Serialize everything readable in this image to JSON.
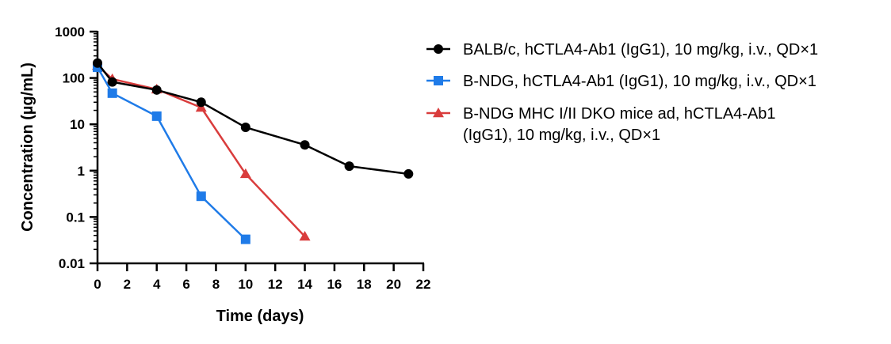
{
  "chart_data": {
    "type": "line",
    "xlabel": "Time (days)",
    "ylabel": "Concentration (µg/mL)",
    "xlim": [
      0,
      22
    ],
    "ylim": [
      0.01,
      1000
    ],
    "yscale": "log",
    "x_ticks": [
      "0",
      "2",
      "4",
      "6",
      "8",
      "10",
      "12",
      "14",
      "16",
      "18",
      "20",
      "22"
    ],
    "y_ticks": [
      "0.01",
      "0.1",
      "1",
      "10",
      "100",
      "1000"
    ],
    "grid": false,
    "legend_position": "right",
    "series": [
      {
        "name": "BALB/c, hCTLA4-Ab1 (IgG1), 10 mg/kg, i.v., QD×1",
        "legend_lines": [
          "BALB/c, hCTLA4-Ab1 (IgG1), 10 mg/kg, i.v., QD×1"
        ],
        "marker": "circle",
        "color": "#000000",
        "x": [
          0,
          1,
          4,
          7,
          10,
          14,
          17,
          21
        ],
        "y": [
          210,
          82,
          55,
          30,
          8.6,
          3.6,
          1.25,
          0.85
        ]
      },
      {
        "name": "B-NDG, hCTLA4-Ab1 (IgG1), 10 mg/kg, i.v., QD×1",
        "legend_lines": [
          "B-NDG, hCTLA4-Ab1 (IgG1), 10 mg/kg, i.v., QD×1"
        ],
        "marker": "square",
        "color": "#1f7be8",
        "x": [
          0,
          1,
          4,
          7,
          10
        ],
        "y": [
          170,
          47,
          15,
          0.28,
          0.033
        ]
      },
      {
        "name": "B-NDG MHC I/II DKO mice ad, hCTLA4-Ab1 (IgG1), 10 mg/kg, i.v., QD×1",
        "legend_lines": [
          "B-NDG MHC I/II DKO mice ad, hCTLA4-Ab1",
          "(IgG1), 10 mg/kg, i.v., QD×1"
        ],
        "marker": "triangle",
        "color": "#d93c3c",
        "x": [
          0,
          1,
          4,
          7,
          10,
          14
        ],
        "y": [
          185,
          95,
          57,
          23,
          0.85,
          0.038
        ]
      }
    ]
  }
}
